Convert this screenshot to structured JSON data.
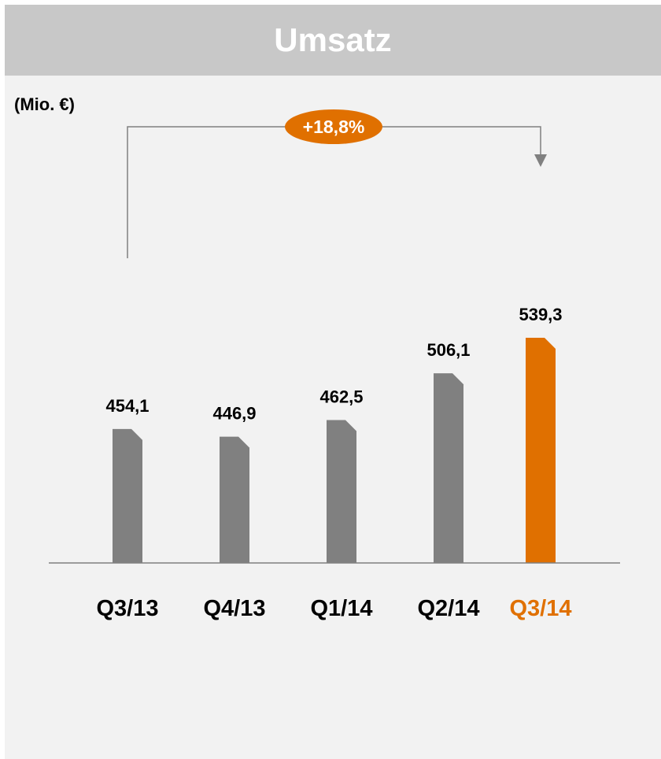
{
  "title": "Umsatz",
  "chart_data": {
    "type": "bar",
    "title": "Umsatz",
    "unit_label": "(Mio. €)",
    "categories": [
      "Q3/13",
      "Q4/13",
      "Q1/14",
      "Q2/14",
      "Q3/14"
    ],
    "values": [
      454.1,
      446.9,
      462.5,
      506.1,
      539.3
    ],
    "value_labels": [
      "454,1",
      "446,9",
      "462,5",
      "506,1",
      "539,3"
    ],
    "highlight_index": 4,
    "growth_annotation": "+18,8%",
    "colors": {
      "bar": "#808080",
      "highlight": "#e07000",
      "title_bg": "#c8c8c8",
      "panel_bg": "#f2f2f2"
    }
  }
}
